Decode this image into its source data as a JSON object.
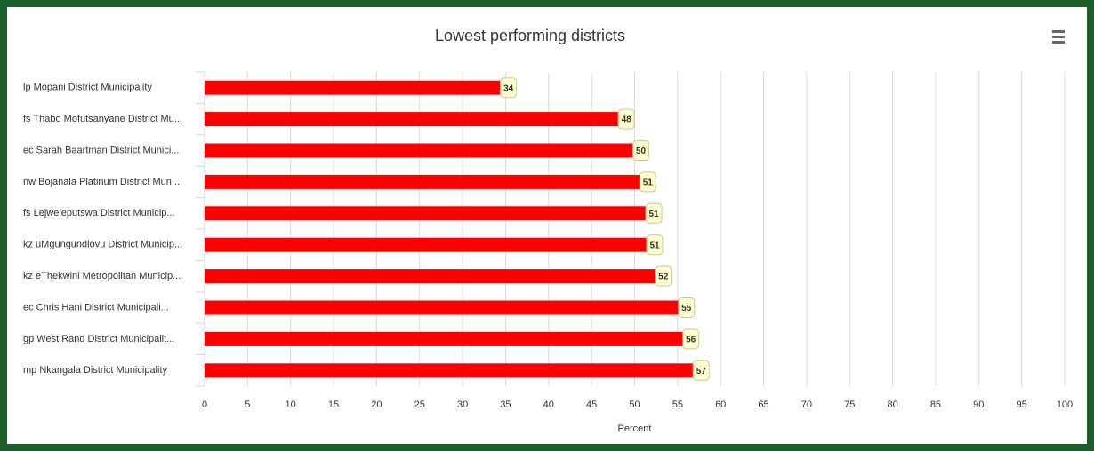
{
  "chart_data": {
    "type": "bar",
    "orientation": "horizontal",
    "title": "Lowest performing districts",
    "categories": [
      "lp Mopani District Municipality",
      "fs Thabo Mofutsanyane District Mu...",
      "ec Sarah Baartman District Munici...",
      "nw Bojanala Platinum District Mun...",
      "fs Lejweleputswa District Municip...",
      "kz uMgungundlovu District Municip...",
      "kz eThekwini Metropolitan Municip...",
      "ec Chris Hani District Municipali...",
      "gp West Rand District Municipalit...",
      "mp Nkangala District Municipality"
    ],
    "values": [
      34.4,
      48.1,
      49.8,
      50.6,
      51.3,
      51.4,
      52.4,
      55.1,
      55.6,
      56.8
    ],
    "value_labels": [
      "34",
      "48",
      "50",
      "51",
      "51",
      "51",
      "52",
      "55",
      "56",
      "57"
    ],
    "color": "#ff0000",
    "xlim": [
      0,
      100
    ],
    "xticks": [
      0,
      5,
      10,
      15,
      20,
      25,
      30,
      35,
      40,
      45,
      50,
      55,
      60,
      65,
      70,
      75,
      80,
      85,
      90,
      95,
      100
    ],
    "xlabel": "Percent",
    "grid": true
  }
}
